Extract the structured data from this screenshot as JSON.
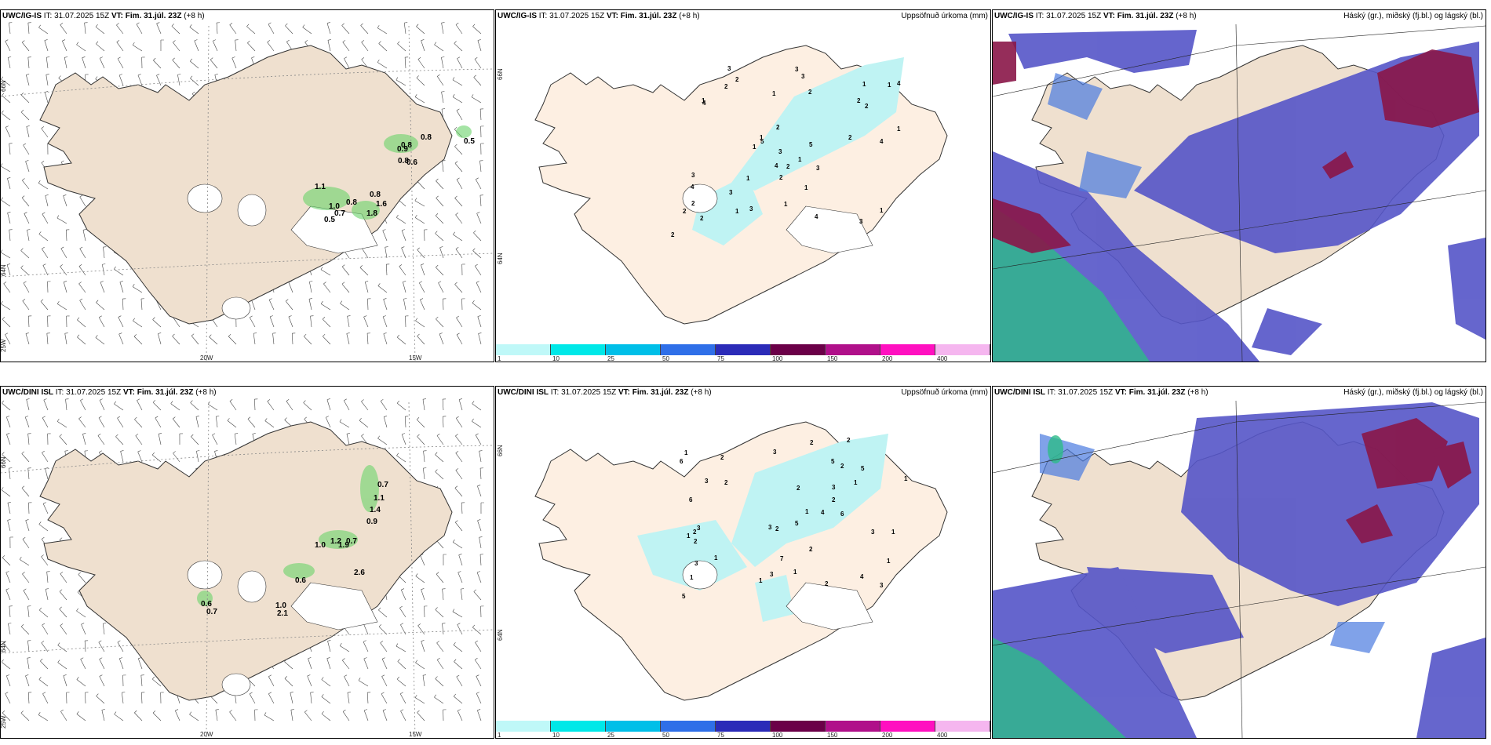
{
  "panels": [
    {
      "model": "UWC/IG-IS",
      "init": "IT: 31.07.2025 15Z",
      "valid": "VT: Fim. 31.júl. 23Z",
      "lead": "(+8 h)",
      "title": "",
      "kind": "wind"
    },
    {
      "model": "UWC/IG-IS",
      "init": "IT: 31.07.2025 15Z",
      "valid": "VT: Fim. 31.júl. 23Z",
      "lead": "(+8 h)",
      "title": "Uppsöfnuð úrkoma (mm)",
      "kind": "precip"
    },
    {
      "model": "UWC/IG-IS",
      "init": "IT: 31.07.2025 15Z",
      "valid": "VT: Fim. 31.júl. 23Z",
      "lead": "(+8 h)",
      "title": "Háský (gr.), miðský (fj.bl.) og lágský (bl.)",
      "kind": "cloud"
    },
    {
      "model": "UWC/DINI ISL",
      "init": "IT: 31.07.2025 15Z",
      "valid": "VT: Fim. 31.júl. 23Z",
      "lead": "(+8 h)",
      "title": "",
      "kind": "wind"
    },
    {
      "model": "UWC/DINI ISL",
      "init": "IT: 31.07.2025 15Z",
      "valid": "VT: Fim. 31.júl. 23Z",
      "lead": "(+8 h)",
      "title": "Uppsöfnuð úrkoma (mm)",
      "kind": "precip"
    },
    {
      "model": "UWC/DINI ISL",
      "init": "IT: 31.07.2025 15Z",
      "valid": "VT: Fim. 31.júl. 23Z",
      "lead": "(+8 h)",
      "title": "Háský (gr.), miðský (fj.bl.) og lágský (bl.)",
      "kind": "cloud"
    }
  ],
  "wind_axis_labels": {
    "lat_66": "66N",
    "lat_64": "64N",
    "lon_25": "25W",
    "lon_20": "20W",
    "lon_15": "15W"
  },
  "precip_axis_labels": {
    "lat_66": "66N",
    "lat_64": "64N"
  },
  "colorbar": {
    "labels": [
      "1",
      "10",
      "25",
      "50",
      "75",
      "100",
      "150",
      "200",
      "400"
    ],
    "colors": [
      "#bff8f8",
      "#00e8e8",
      "#00bfe8",
      "#2f6fe8",
      "#2b2bb8",
      "#6b0048",
      "#b0108a",
      "#ff10c0",
      "#f5b6ef"
    ]
  },
  "wind_precip_values": {
    "top": [
      "0.5",
      "0.8",
      "0.8",
      "0.9",
      "0.8",
      "0.6",
      "1.1",
      "1.0",
      "0.8",
      "0.7",
      "0.5",
      "0.8",
      "1.6",
      "1.8"
    ],
    "bottom": [
      "0.7",
      "1.1",
      "1.4",
      "0.9",
      "1.0",
      "1.2",
      "1.9",
      "0.7",
      "2.6",
      "0.6",
      "0.6",
      "0.7",
      "1.0",
      "2.1"
    ]
  },
  "precip_numbers": {
    "top": [
      "2",
      "4",
      "5",
      "3",
      "4",
      "4",
      "5",
      "1",
      "1",
      "1",
      "2",
      "2",
      "1",
      "4",
      "3",
      "3",
      "2",
      "2",
      "3",
      "4",
      "3",
      "1",
      "2",
      "2",
      "4",
      "1",
      "3",
      "2",
      "1",
      "1",
      "1",
      "2",
      "1",
      "3",
      "1",
      "2",
      "2",
      "2",
      "3",
      "3",
      "2",
      "1",
      "1"
    ],
    "bottom": [
      "2",
      "2",
      "3",
      "5",
      "5",
      "6",
      "5",
      "1",
      "1",
      "1",
      "2",
      "3",
      "3",
      "6",
      "3",
      "2",
      "1",
      "2",
      "2",
      "3",
      "3",
      "6",
      "7",
      "3",
      "1",
      "2",
      "2",
      "4",
      "2",
      "2",
      "2",
      "5",
      "4",
      "1",
      "1",
      "1",
      "1",
      "2",
      "3",
      "3",
      "1",
      "1"
    ]
  },
  "colors": {
    "land": "#efe0cf",
    "land_precip": "#fdefe2",
    "precip_fill": "#bff3f3",
    "wind_green": "#6bd36b",
    "cloud_low": "#5555c8",
    "cloud_mid": "#4a7be0",
    "cloud_high": "#8a1648",
    "sea_green": "#2dbb88"
  }
}
